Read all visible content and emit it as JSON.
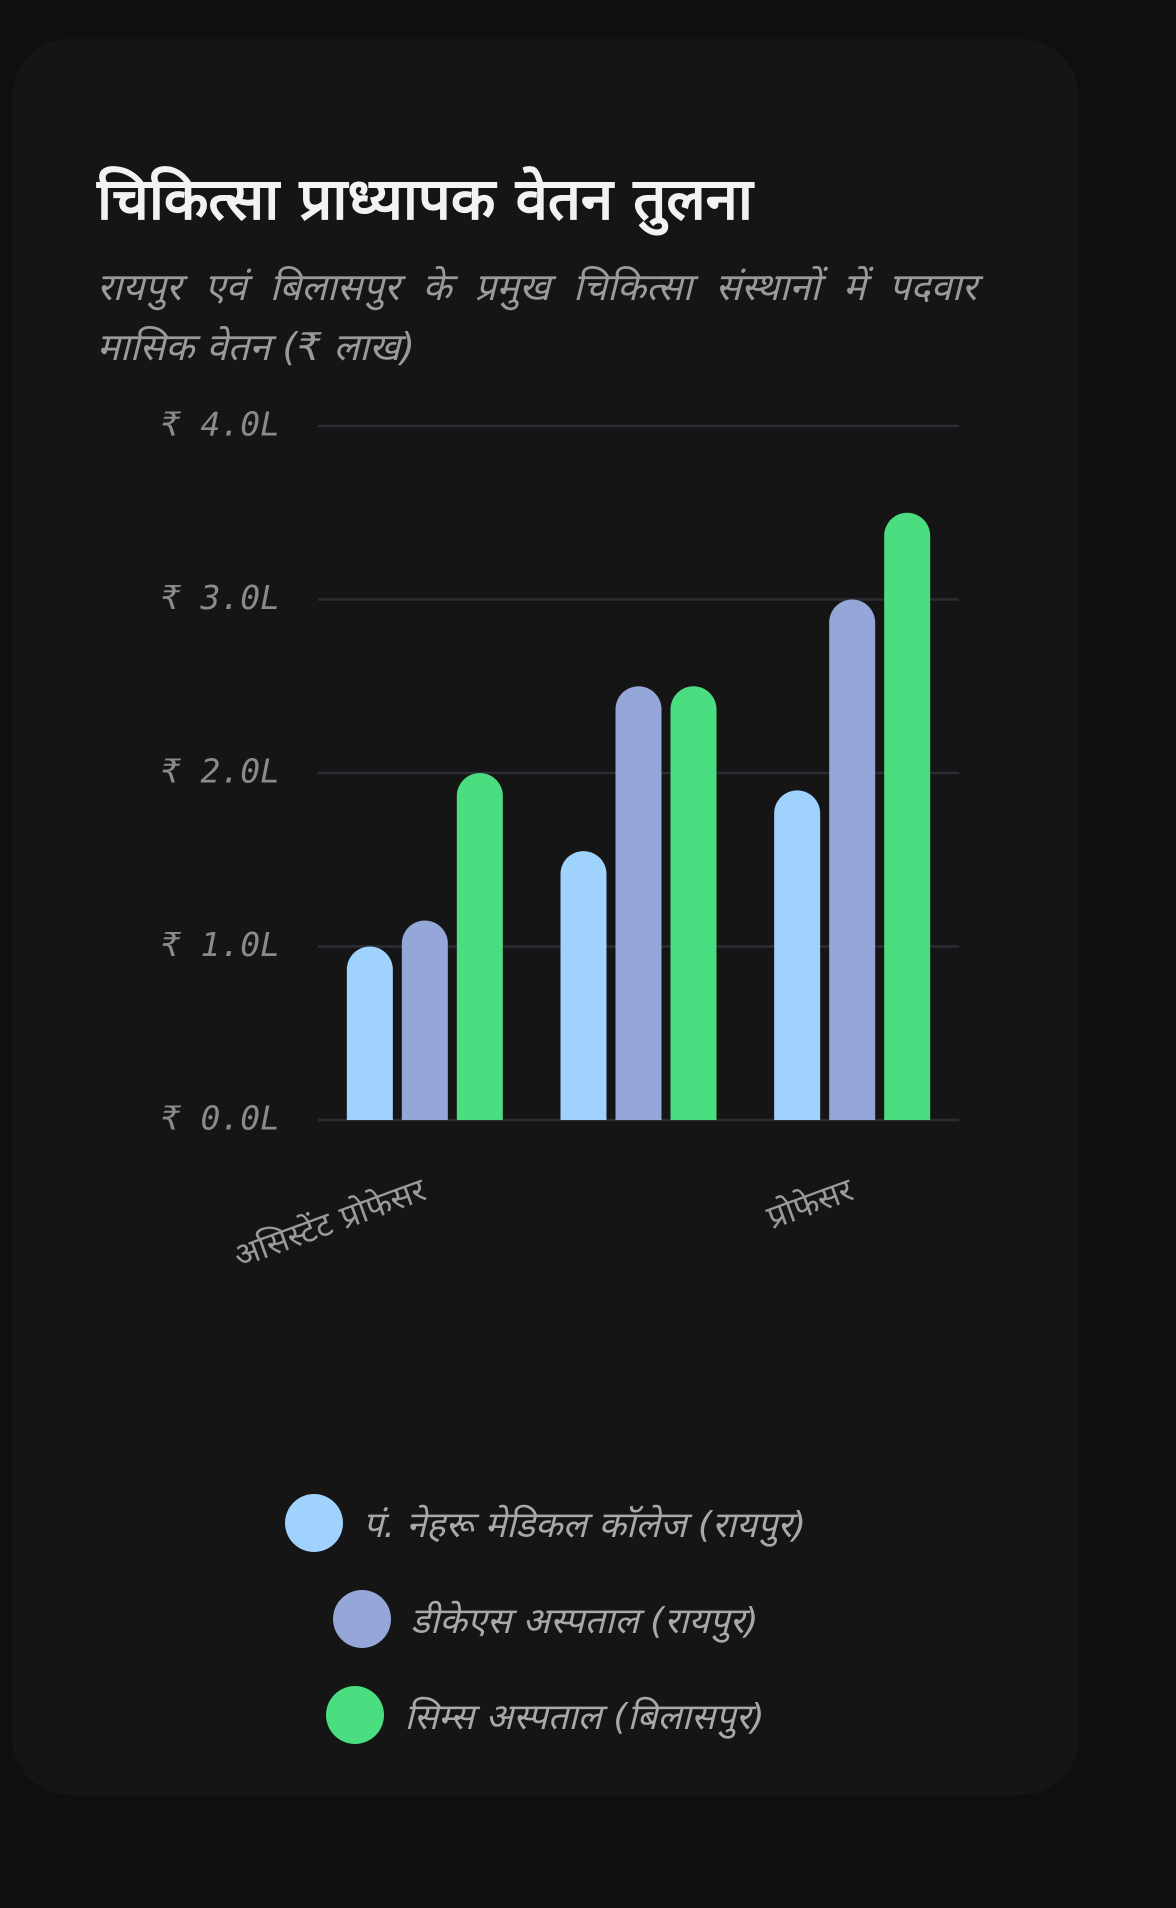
{
  "chart_data": {
    "type": "bar",
    "title": "चिकित्सा प्राध्यापक वेतन तुलना",
    "subtitle": "रायपुर एवं बिलासपुर के प्रमुख चिकित्सा संस्थानों में पदवार मासिक वेतन (₹ लाख)",
    "categories": [
      "असिस्टेंट प्रोफेसर",
      null,
      "प्रोफेसर"
    ],
    "series": [
      {
        "name": "पं. नेहरू मेडिकल कॉलेज (रायपुर)",
        "color": "#a0d2fe",
        "values": [
          1.0,
          1.55,
          1.9
        ]
      },
      {
        "name": "डीकेएस अस्पताल (रायपुर)",
        "color": "#94a7d8",
        "values": [
          1.15,
          2.5,
          3.0
        ]
      },
      {
        "name": "सिम्स अस्पताल (बिलासपुर)",
        "color": "#4ade80",
        "values": [
          2.0,
          2.5,
          3.5
        ]
      }
    ],
    "ylim": [
      0,
      4
    ],
    "yticks": [
      {
        "value": 0,
        "label": "₹ 0.0L"
      },
      {
        "value": 1,
        "label": "₹ 1.0L"
      },
      {
        "value": 2,
        "label": "₹ 2.0L"
      },
      {
        "value": 3,
        "label": "₹ 3.0L"
      },
      {
        "value": 4,
        "label": "₹ 4.0L"
      }
    ],
    "grid": true,
    "legend": "bottom"
  }
}
